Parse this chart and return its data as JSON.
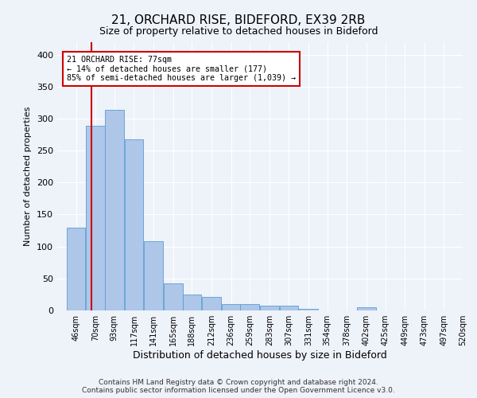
{
  "title1": "21, ORCHARD RISE, BIDEFORD, EX39 2RB",
  "title2": "Size of property relative to detached houses in Bideford",
  "xlabel": "Distribution of detached houses by size in Bideford",
  "ylabel": "Number of detached properties",
  "footnote": "Contains HM Land Registry data © Crown copyright and database right 2024.\nContains public sector information licensed under the Open Government Licence v3.0.",
  "bins": [
    46,
    70,
    93,
    117,
    141,
    165,
    188,
    212,
    236,
    259,
    283,
    307,
    331,
    354,
    378,
    402,
    425,
    449,
    473,
    497,
    520
  ],
  "bar_heights": [
    130,
    289,
    313,
    268,
    108,
    42,
    25,
    21,
    10,
    10,
    7,
    7,
    3,
    0,
    0,
    5,
    0,
    0,
    0,
    0
  ],
  "bar_color": "#aec6e8",
  "bar_edge_color": "#5a9fd4",
  "property_sqm": 77,
  "red_line_color": "#cc0000",
  "annotation_text": "21 ORCHARD RISE: 77sqm\n← 14% of detached houses are smaller (177)\n85% of semi-detached houses are larger (1,039) →",
  "annotation_box_color": "#cc0000",
  "ylim": [
    0,
    420
  ],
  "yticks": [
    0,
    50,
    100,
    150,
    200,
    250,
    300,
    350,
    400
  ],
  "background_color": "#eef2f9",
  "grid_color": "#ffffff",
  "tick_labels": [
    "46sqm",
    "70sqm",
    "93sqm",
    "117sqm",
    "141sqm",
    "165sqm",
    "188sqm",
    "212sqm",
    "236sqm",
    "259sqm",
    "283sqm",
    "307sqm",
    "331sqm",
    "354sqm",
    "378sqm",
    "402sqm",
    "425sqm",
    "449sqm",
    "473sqm",
    "497sqm",
    "520sqm"
  ],
  "title1_fontsize": 11,
  "title2_fontsize": 9,
  "xlabel_fontsize": 9,
  "ylabel_fontsize": 8,
  "tick_fontsize": 7,
  "footnote_fontsize": 6.5
}
